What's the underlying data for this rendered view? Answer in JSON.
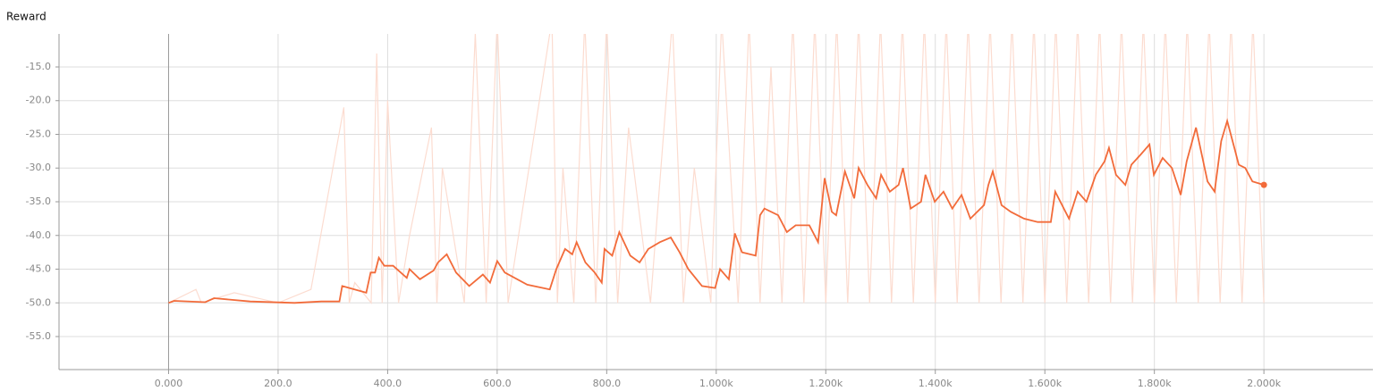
{
  "chart_data": {
    "type": "line",
    "title": "Reward",
    "xlim": [
      -200,
      2199
    ],
    "ylim": [
      -59.9,
      -10.1
    ],
    "xticks": [
      {
        "value": 0,
        "label": "0.000"
      },
      {
        "value": 200,
        "label": "200.0"
      },
      {
        "value": 400,
        "label": "400.0"
      },
      {
        "value": 600,
        "label": "600.0"
      },
      {
        "value": 800,
        "label": "800.0"
      },
      {
        "value": 1000,
        "label": "1.000k"
      },
      {
        "value": 1200,
        "label": "1.200k"
      },
      {
        "value": 1400,
        "label": "1.400k"
      },
      {
        "value": 1600,
        "label": "1.600k"
      },
      {
        "value": 1800,
        "label": "1.800k"
      },
      {
        "value": 2000,
        "label": "2.000k"
      }
    ],
    "yticks": [
      {
        "value": -15,
        "label": "-15.0"
      },
      {
        "value": -20,
        "label": "-20.0"
      },
      {
        "value": -25,
        "label": "-25.0"
      },
      {
        "value": -30,
        "label": "-30.0"
      },
      {
        "value": -35,
        "label": "-35.0"
      },
      {
        "value": -40,
        "label": "-40.0"
      },
      {
        "value": -45,
        "label": "-45.0"
      },
      {
        "value": -50,
        "label": "-50.0"
      },
      {
        "value": -55,
        "label": "-55.0"
      }
    ],
    "grid": true,
    "series": [
      {
        "color": "#fcdcd0",
        "x": [
          0,
          50,
          60,
          120,
          200,
          260,
          320,
          330,
          340,
          370,
          380,
          390,
          400,
          420,
          440,
          480,
          490,
          500,
          540,
          560,
          580,
          600,
          620,
          700,
          710,
          720,
          740,
          760,
          780,
          800,
          820,
          840,
          880,
          920,
          940,
          960,
          990,
          1010,
          1040,
          1060,
          1080,
          1100,
          1120,
          1140,
          1160,
          1180,
          1200,
          1220,
          1240,
          1260,
          1280,
          1300,
          1320,
          1340,
          1360,
          1380,
          1400,
          1420,
          1440,
          1460,
          1480,
          1500,
          1520,
          1540,
          1560,
          1580,
          1600,
          1620,
          1640,
          1660,
          1680,
          1700,
          1720,
          1740,
          1760,
          1780,
          1800,
          1820,
          1840,
          1860,
          1880,
          1900,
          1920,
          1940,
          1960,
          1980,
          2000
        ],
        "values": [
          -50,
          -48,
          -50,
          -48.5,
          -50,
          -48,
          -21,
          -50,
          -47,
          -50,
          -13,
          -50,
          -20,
          -50,
          -40,
          -24,
          -50,
          -30,
          -50,
          -10,
          -50,
          -8,
          -50,
          -8,
          -50,
          -30,
          -50,
          -8,
          -50,
          -8,
          -50,
          -24,
          -50,
          -8,
          -50,
          -30,
          -50,
          -8,
          -50,
          -8,
          -50,
          -15,
          -50,
          -8,
          -50,
          -8,
          -50,
          -8,
          -50,
          -8,
          -50,
          -8,
          -50,
          -8,
          -50,
          -8,
          -50,
          -8,
          -50,
          -8,
          -50,
          -8,
          -50,
          -8,
          -50,
          -8,
          -50,
          -8,
          -50,
          -8,
          -50,
          -8,
          -50,
          -8,
          -50,
          -8,
          -50,
          -8,
          -50,
          -8,
          -50,
          -8,
          -50,
          -8,
          -50,
          -8,
          -50
        ]
      },
      {
        "color": "#f26b3a",
        "x": [
          0,
          10,
          67,
          83,
          149,
          230,
          279,
          312,
          317,
          361,
          369,
          377,
          384,
          394,
          410,
          435,
          440,
          459,
          484,
          492,
          508,
          525,
          549,
          574,
          587,
          600,
          614,
          655,
          696,
          708,
          724,
          737,
          745,
          761,
          778,
          791,
          796,
          810,
          823,
          843,
          860,
          876,
          897,
          917,
          933,
          949,
          974,
          998,
          1007,
          1023,
          1034,
          1047,
          1072,
          1080,
          1088,
          1113,
          1129,
          1145,
          1170,
          1186,
          1198,
          1211,
          1219,
          1235,
          1252,
          1260,
          1276,
          1292,
          1301,
          1317,
          1333,
          1341,
          1355,
          1374,
          1382,
          1399,
          1415,
          1431,
          1448,
          1464,
          1489,
          1497,
          1505,
          1521,
          1538,
          1562,
          1587,
          1611,
          1619,
          1644,
          1660,
          1676,
          1693,
          1709,
          1717,
          1730,
          1747,
          1758,
          1775,
          1791,
          1799,
          1815,
          1832,
          1848,
          1859,
          1876,
          1897,
          1910,
          1922,
          1933,
          1946,
          1954,
          1966,
          1979,
          2000
        ],
        "values": [
          -50,
          -49.7,
          -49.9,
          -49.3,
          -49.8,
          -50,
          -49.8,
          -49.8,
          -47.5,
          -48.5,
          -45.5,
          -45.5,
          -43.3,
          -44.5,
          -44.5,
          -46.3,
          -45,
          -46.5,
          -45.2,
          -44,
          -42.8,
          -45.5,
          -47.5,
          -45.8,
          -47,
          -43.8,
          -45.5,
          -47.3,
          -48,
          -45,
          -42,
          -42.8,
          -41,
          -44,
          -45.5,
          -47,
          -42,
          -43,
          -39.5,
          -43,
          -44,
          -42,
          -41,
          -40.3,
          -42.5,
          -45,
          -47.5,
          -47.8,
          -45,
          -46.5,
          -39.7,
          -42.5,
          -43,
          -37,
          -36,
          -37,
          -39.5,
          -38.5,
          -38.5,
          -41,
          -31.5,
          -36.5,
          -37,
          -30.5,
          -34.5,
          -30,
          -32.5,
          -34.5,
          -31,
          -33.5,
          -32.5,
          -30,
          -36,
          -35,
          -31,
          -35,
          -33.5,
          -36,
          -34,
          -37.5,
          -35.5,
          -32.5,
          -30.5,
          -35.5,
          -36.5,
          -37.5,
          -38,
          -38,
          -33.5,
          -37.5,
          -33.5,
          -35,
          -31,
          -29,
          -27,
          -31,
          -32.5,
          -29.5,
          -28,
          -26.5,
          -31,
          -28.5,
          -30,
          -34,
          -29,
          -24,
          -32,
          -33.5,
          -26,
          -23,
          -27,
          -29.5,
          -30,
          -32,
          -32.5
        ]
      }
    ]
  }
}
